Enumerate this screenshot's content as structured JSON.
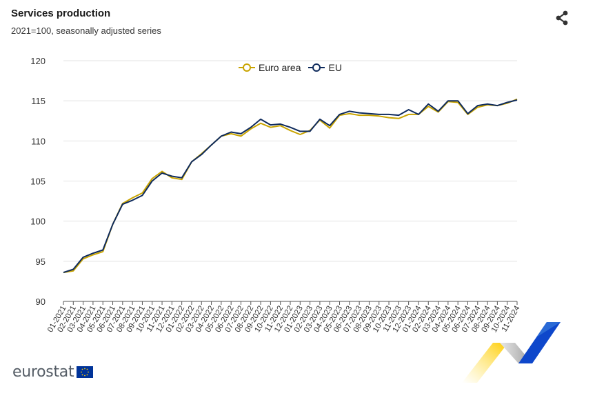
{
  "header": {
    "title": "Services production",
    "subtitle": "2021=100, seasonally adjusted series"
  },
  "icons": {
    "share": "share-icon"
  },
  "legend": {
    "items": [
      "Euro area",
      "EU"
    ]
  },
  "footer": {
    "brand": "eurostat"
  },
  "colors": {
    "euro_area": "#c9a400",
    "eu": "#0e2a5c",
    "grid": "#e3e3e3",
    "axis": "#555555"
  },
  "chart_data": {
    "type": "line",
    "title": "Services production",
    "subtitle": "2021=100, seasonally adjusted series",
    "ylim": [
      90,
      120
    ],
    "yticks": [
      90,
      95,
      100,
      105,
      110,
      115,
      120
    ],
    "legend_position": "top-center",
    "grid": true,
    "categories": [
      "01-2021",
      "02-2021",
      "03-2021",
      "04-2021",
      "05-2021",
      "06-2021",
      "07-2021",
      "08-2021",
      "09-2021",
      "10-2021",
      "11-2021",
      "12-2021",
      "01-2022",
      "02-2022",
      "03-2022",
      "04-2022",
      "05-2022",
      "06-2022",
      "07-2022",
      "08-2022",
      "09-2022",
      "10-2022",
      "11-2022",
      "12-2022",
      "01-2023",
      "02-2023",
      "03-2023",
      "04-2023",
      "05-2023",
      "06-2023",
      "07-2023",
      "08-2023",
      "09-2023",
      "10-2023",
      "11-2023",
      "12-2023",
      "01-2024",
      "02-2024",
      "03-2024",
      "04-2024",
      "05-2024",
      "06-2024",
      "07-2024",
      "08-2024",
      "09-2024",
      "10-2024",
      "11-2024"
    ],
    "series": [
      {
        "name": "Euro area",
        "color": "#c9a400",
        "values": [
          93.6,
          93.8,
          95.3,
          95.8,
          96.2,
          99.6,
          102.2,
          102.9,
          103.5,
          105.3,
          106.2,
          105.4,
          105.2,
          107.4,
          108.4,
          109.5,
          110.6,
          110.9,
          110.6,
          111.5,
          112.2,
          111.7,
          111.9,
          111.3,
          110.8,
          111.3,
          112.6,
          111.6,
          113.2,
          113.4,
          113.2,
          113.2,
          113.1,
          112.9,
          112.8,
          113.3,
          113.3,
          114.3,
          113.6,
          114.9,
          114.8,
          113.3,
          114.2,
          114.5,
          114.4,
          114.7,
          115.2
        ]
      },
      {
        "name": "EU",
        "color": "#0e2a5c",
        "values": [
          93.6,
          94.0,
          95.5,
          96.0,
          96.4,
          99.6,
          102.1,
          102.6,
          103.2,
          105.0,
          106.0,
          105.6,
          105.4,
          107.4,
          108.3,
          109.5,
          110.6,
          111.1,
          110.9,
          111.7,
          112.7,
          112.0,
          112.1,
          111.7,
          111.2,
          111.2,
          112.7,
          111.9,
          113.3,
          113.7,
          113.5,
          113.4,
          113.3,
          113.3,
          113.2,
          113.9,
          113.3,
          114.6,
          113.7,
          115.0,
          115.0,
          113.4,
          114.4,
          114.6,
          114.4,
          114.8,
          115.1
        ]
      }
    ]
  }
}
